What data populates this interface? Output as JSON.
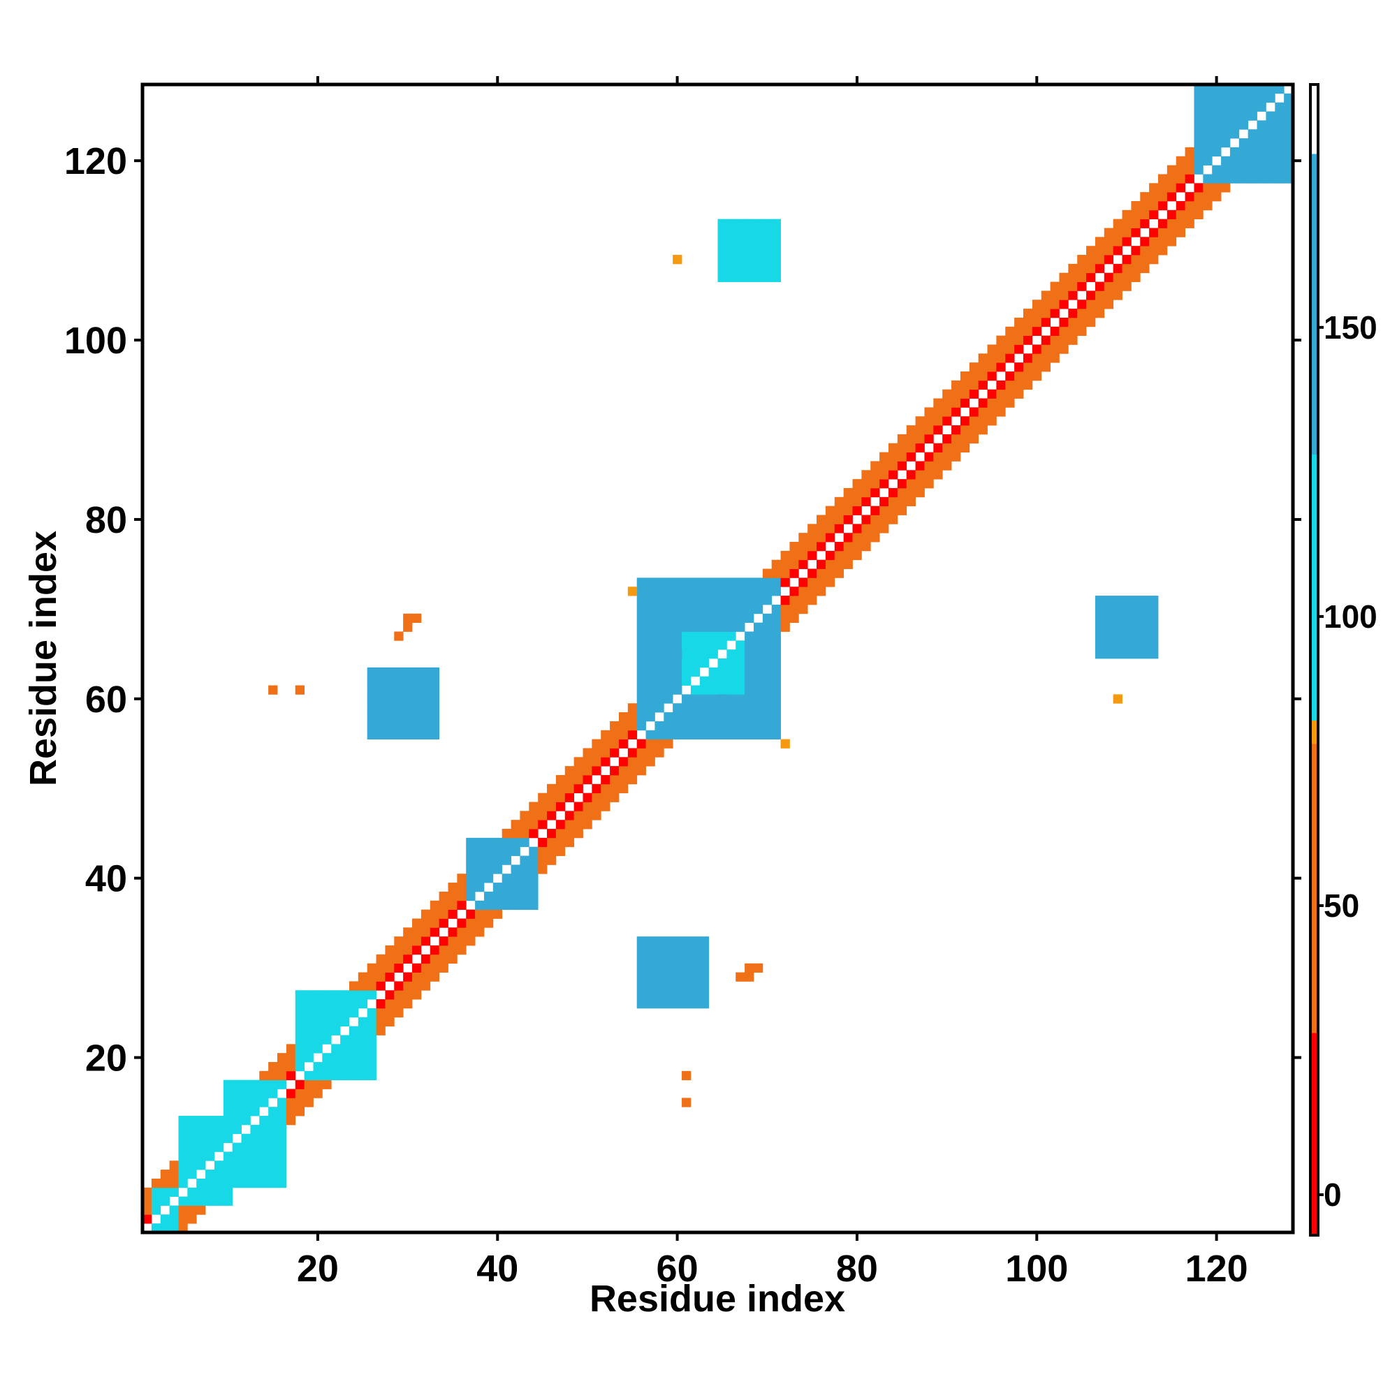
{
  "chart_data": {
    "type": "heatmap",
    "title": "",
    "xlabel": "Residue index",
    "ylabel": "Residue index",
    "xlim": [
      1,
      128
    ],
    "ylim": [
      1,
      128
    ],
    "xticks": [
      20,
      40,
      60,
      80,
      100,
      120
    ],
    "yticks": [
      20,
      40,
      60,
      80,
      100,
      120
    ],
    "colorbar": {
      "ticks": [
        0,
        50,
        100,
        150
      ],
      "range": [
        -7,
        192
      ],
      "segments": [
        {
          "from": -7,
          "to": 28,
          "color": "#ff0000"
        },
        {
          "from": 28,
          "to": 78,
          "color": "#f07018"
        },
        {
          "from": 78,
          "to": 82,
          "color": "#f59a10"
        },
        {
          "from": 82,
          "to": 128,
          "color": "#16d8e6"
        },
        {
          "from": 128,
          "to": 180,
          "color": "#34a9d6"
        },
        {
          "from": 180,
          "to": 192,
          "color": "#ffffff"
        }
      ]
    },
    "band": {
      "description": "diagonal contact band |i-j| <= 4",
      "values_by_offset": {
        "1": 20,
        "2": 50,
        "3": 40,
        "4": 45
      },
      "residue_range": [
        1,
        128
      ]
    },
    "blocks": [
      {
        "x": [
          2,
          4
        ],
        "y": [
          1,
          5
        ],
        "value": 105
      },
      {
        "x": [
          5,
          10
        ],
        "y": [
          4,
          13
        ],
        "value": 110
      },
      {
        "x": [
          10,
          16
        ],
        "y": [
          6,
          17
        ],
        "value": 105
      },
      {
        "x": [
          18,
          26
        ],
        "y": [
          18,
          27
        ],
        "value": 120
      },
      {
        "x": [
          37,
          44
        ],
        "y": [
          37,
          44
        ],
        "value": 140
      },
      {
        "x": [
          56,
          71
        ],
        "y": [
          56,
          73
        ],
        "value": 170
      },
      {
        "x": [
          61,
          67
        ],
        "y": [
          61,
          67
        ],
        "value": 100
      },
      {
        "x": [
          118,
          128
        ],
        "y": [
          118,
          128
        ],
        "value": 170
      },
      {
        "x": [
          26,
          33
        ],
        "y": [
          56,
          63
        ],
        "value": 170
      },
      {
        "x": [
          56,
          63
        ],
        "y": [
          26,
          33
        ],
        "value": 165
      },
      {
        "x": [
          65,
          71
        ],
        "y": [
          107,
          113
        ],
        "value": 120
      },
      {
        "x": [
          107,
          113
        ],
        "y": [
          65,
          71
        ],
        "value": 130
      }
    ],
    "points": [
      {
        "x": 29,
        "y": 67,
        "value": 45
      },
      {
        "x": 30,
        "y": 68,
        "value": 45
      },
      {
        "x": 30,
        "y": 69,
        "value": 45
      },
      {
        "x": 31,
        "y": 69,
        "value": 45
      },
      {
        "x": 67,
        "y": 29,
        "value": 45
      },
      {
        "x": 68,
        "y": 29,
        "value": 45
      },
      {
        "x": 68,
        "y": 30,
        "value": 45
      },
      {
        "x": 69,
        "y": 30,
        "value": 45
      },
      {
        "x": 15,
        "y": 61,
        "value": 45
      },
      {
        "x": 18,
        "y": 61,
        "value": 45
      },
      {
        "x": 61,
        "y": 18,
        "value": 45
      },
      {
        "x": 61,
        "y": 15,
        "value": 45
      },
      {
        "x": 60,
        "y": 109,
        "value": 80
      },
      {
        "x": 109,
        "y": 60,
        "value": 80
      },
      {
        "x": 72,
        "y": 55,
        "value": 80
      },
      {
        "x": 55,
        "y": 72,
        "value": 80
      }
    ]
  }
}
